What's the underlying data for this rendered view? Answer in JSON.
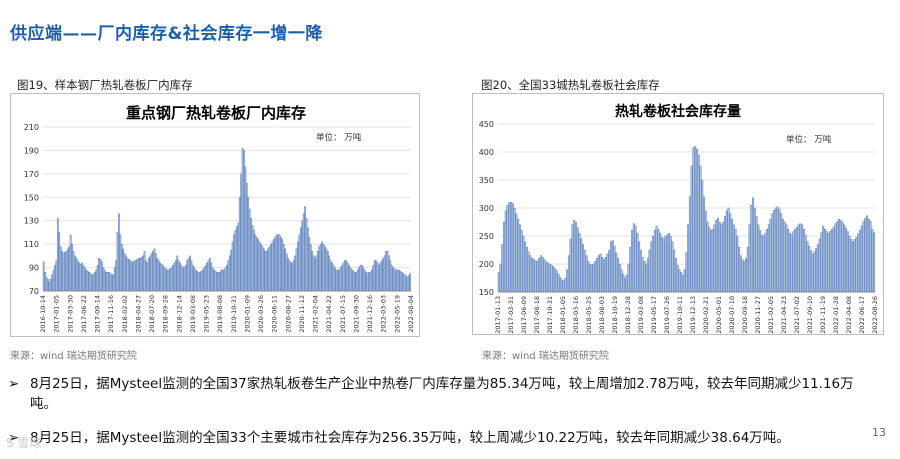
{
  "page": {
    "title": "供应端——厂内库存&社会库存一增一降",
    "page_number": "13",
    "watermark": "S 雪球"
  },
  "figures": [
    {
      "caption": "图19、样本钢厂热轧卷板厂内库存",
      "source": "来源：wind   瑞达期货研究院"
    },
    {
      "caption": "图20、全国33城热轧卷板社会库存",
      "source": "来源：wind   瑞达期货研究院"
    }
  ],
  "bullets": [
    {
      "line1": "8月25日，据Mysteel监测的全国37家热轧板卷生产企业中热卷厂内库存量为85.34万吨，较上周增加2.78万吨，较去年同期减少11.16万",
      "line2": "吨。"
    },
    {
      "line1": "8月25日，据Mysteel监测的全国33个主要城市社会库存为256.35万吨，较上周减少10.22万吨，较去年同期减少38.64万吨。"
    }
  ],
  "colors": {
    "bar_fill": "#a9bee0",
    "bar_stroke": "#4a70b0",
    "title_blue": "#1d5fa6"
  },
  "chart_data": [
    {
      "type": "bar",
      "title": "重点钢厂热轧卷板厂内库存",
      "unit_label": "单位：  万吨",
      "ylim": [
        70,
        210
      ],
      "yticks": [
        70,
        90,
        110,
        130,
        150,
        170,
        190,
        210
      ],
      "grid": true,
      "x_tick_labels": [
        "2016-10-14",
        "2017-01-05",
        "2017-03-30",
        "2017-06-22",
        "2017-09-14",
        "2017-11-16",
        "2018-02-02",
        "2018-04-27",
        "2018-07-20",
        "2018-09-28",
        "2018-12-14",
        "2019-03-08",
        "2019-05-23",
        "2019-08-08",
        "2019-10-31",
        "2020-01-09",
        "2020-03-26",
        "2020-06-11",
        "2020-08-27",
        "2020-11-12",
        "2021-02-04",
        "2021-04-22",
        "2021-07-15",
        "2021-09-30",
        "2021-12-16",
        "2022-03-03",
        "2022-05-19",
        "2022-08-04"
      ],
      "x_start": "2016-10-14",
      "x_end": "2022-08-25",
      "series": [
        {
          "values": [
            95,
            86,
            82,
            80,
            78,
            80,
            84,
            88,
            92,
            96,
            132,
            120,
            108,
            104,
            102,
            103,
            104,
            106,
            108,
            118,
            110,
            104,
            100,
            98,
            96,
            94,
            93,
            94,
            92,
            90,
            88,
            87,
            86,
            85,
            84,
            84,
            86,
            88,
            92,
            98,
            97,
            95,
            90,
            88,
            86,
            86,
            86,
            85,
            84,
            84,
            90,
            96,
            120,
            136,
            118,
            110,
            106,
            102,
            100,
            98,
            97,
            96,
            95,
            95,
            96,
            96,
            97,
            98,
            98,
            99,
            100,
            104,
            96,
            94,
            98,
            100,
            102,
            104,
            106,
            102,
            98,
            96,
            94,
            93,
            92,
            90,
            89,
            88,
            88,
            89,
            90,
            92,
            94,
            96,
            100,
            96,
            94,
            92,
            90,
            90,
            92,
            96,
            98,
            100,
            96,
            92,
            90,
            88,
            87,
            86,
            86,
            87,
            88,
            90,
            92,
            94,
            96,
            98,
            94,
            90,
            88,
            87,
            86,
            86,
            86,
            88,
            88,
            88,
            90,
            92,
            96,
            100,
            105,
            112,
            118,
            122,
            125,
            128,
            150,
            170,
            192,
            190,
            176,
            162,
            150,
            140,
            132,
            126,
            122,
            118,
            116,
            114,
            112,
            110,
            108,
            106,
            104,
            104,
            106,
            108,
            110,
            112,
            114,
            116,
            118,
            118,
            118,
            116,
            114,
            110,
            106,
            102,
            98,
            96,
            94,
            94,
            96,
            100,
            106,
            112,
            118,
            124,
            130,
            136,
            142,
            132,
            124,
            116,
            110,
            104,
            100,
            98,
            100,
            104,
            108,
            110,
            112,
            110,
            108,
            106,
            104,
            100,
            96,
            94,
            92,
            90,
            88,
            88,
            88,
            90,
            92,
            94,
            96,
            96,
            94,
            92,
            90,
            88,
            87,
            86,
            86,
            88,
            90,
            92,
            92,
            90,
            88,
            86,
            85,
            86,
            86,
            88,
            92,
            96,
            96,
            94,
            92,
            94,
            96,
            98,
            100,
            104,
            104,
            100,
            96,
            92,
            90,
            89,
            88,
            88,
            88,
            87,
            86,
            85,
            84,
            83,
            82,
            83,
            85
          ]
        }
      ]
    },
    {
      "type": "bar",
      "title": "热轧卷板社会库存量",
      "unit_label": "单位：  万吨",
      "ylim": [
        150,
        450
      ],
      "yticks": [
        150,
        200,
        250,
        300,
        350,
        400,
        450
      ],
      "grid": true,
      "x_tick_labels": [
        "2017-01-13",
        "2017-03-31",
        "2017-06-09",
        "2017-08-18",
        "2017-10-31",
        "2018-01-05",
        "2018-03-16",
        "2018-05-25",
        "2018-08-03",
        "2018-10-19",
        "2018-12-28",
        "2019-03-08",
        "2019-05-17",
        "2019-07-26",
        "2019-10-11",
        "2019-12-13",
        "2020-02-21",
        "2020-05-01",
        "2020-07-10",
        "2020-09-18",
        "2020-11-27",
        "2021-02-05",
        "2021-04-23",
        "2021-07-02",
        "2021-09-10",
        "2021-11-19",
        "2022-01-28",
        "2022-04-08",
        "2022-06-17",
        "2022-08-26"
      ],
      "x_start": "2017-01-13",
      "x_end": "2022-08-26",
      "series": [
        {
          "values": [
            185,
            200,
            235,
            275,
            295,
            305,
            310,
            310,
            308,
            300,
            290,
            280,
            270,
            260,
            250,
            240,
            230,
            222,
            215,
            210,
            208,
            206,
            205,
            210,
            215,
            212,
            208,
            204,
            202,
            200,
            198,
            196,
            192,
            188,
            182,
            176,
            172,
            170,
            175,
            190,
            215,
            245,
            270,
            278,
            274,
            265,
            255,
            245,
            235,
            225,
            215,
            205,
            200,
            198,
            200,
            205,
            210,
            215,
            218,
            212,
            208,
            212,
            218,
            225,
            240,
            242,
            232,
            220,
            210,
            200,
            190,
            182,
            175,
            180,
            200,
            230,
            260,
            272,
            268,
            255,
            240,
            225,
            212,
            205,
            200,
            210,
            225,
            240,
            250,
            260,
            268,
            262,
            255,
            248,
            245,
            250,
            252,
            255,
            250,
            240,
            225,
            210,
            198,
            190,
            185,
            180,
            190,
            220,
            270,
            320,
            375,
            408,
            410,
            405,
            395,
            375,
            350,
            320,
            295,
            275,
            265,
            260,
            262,
            270,
            278,
            282,
            275,
            270,
            275,
            285,
            295,
            300,
            290,
            280,
            270,
            262,
            250,
            230,
            215,
            208,
            205,
            210,
            230,
            270,
            305,
            318,
            300,
            285,
            270,
            260,
            252,
            250,
            255,
            262,
            270,
            280,
            290,
            296,
            300,
            302,
            298,
            290,
            280,
            275,
            270,
            262,
            255,
            252,
            258,
            262,
            266,
            270,
            272,
            270,
            262,
            252,
            240,
            232,
            224,
            218,
            222,
            228,
            235,
            245,
            256,
            268,
            262,
            258,
            255,
            258,
            262,
            266,
            272,
            276,
            280,
            278,
            275,
            270,
            264,
            258,
            250,
            244,
            240,
            244,
            248,
            254,
            260,
            268,
            276,
            282,
            286,
            280,
            276,
            262,
            256
          ]
        }
      ]
    }
  ]
}
